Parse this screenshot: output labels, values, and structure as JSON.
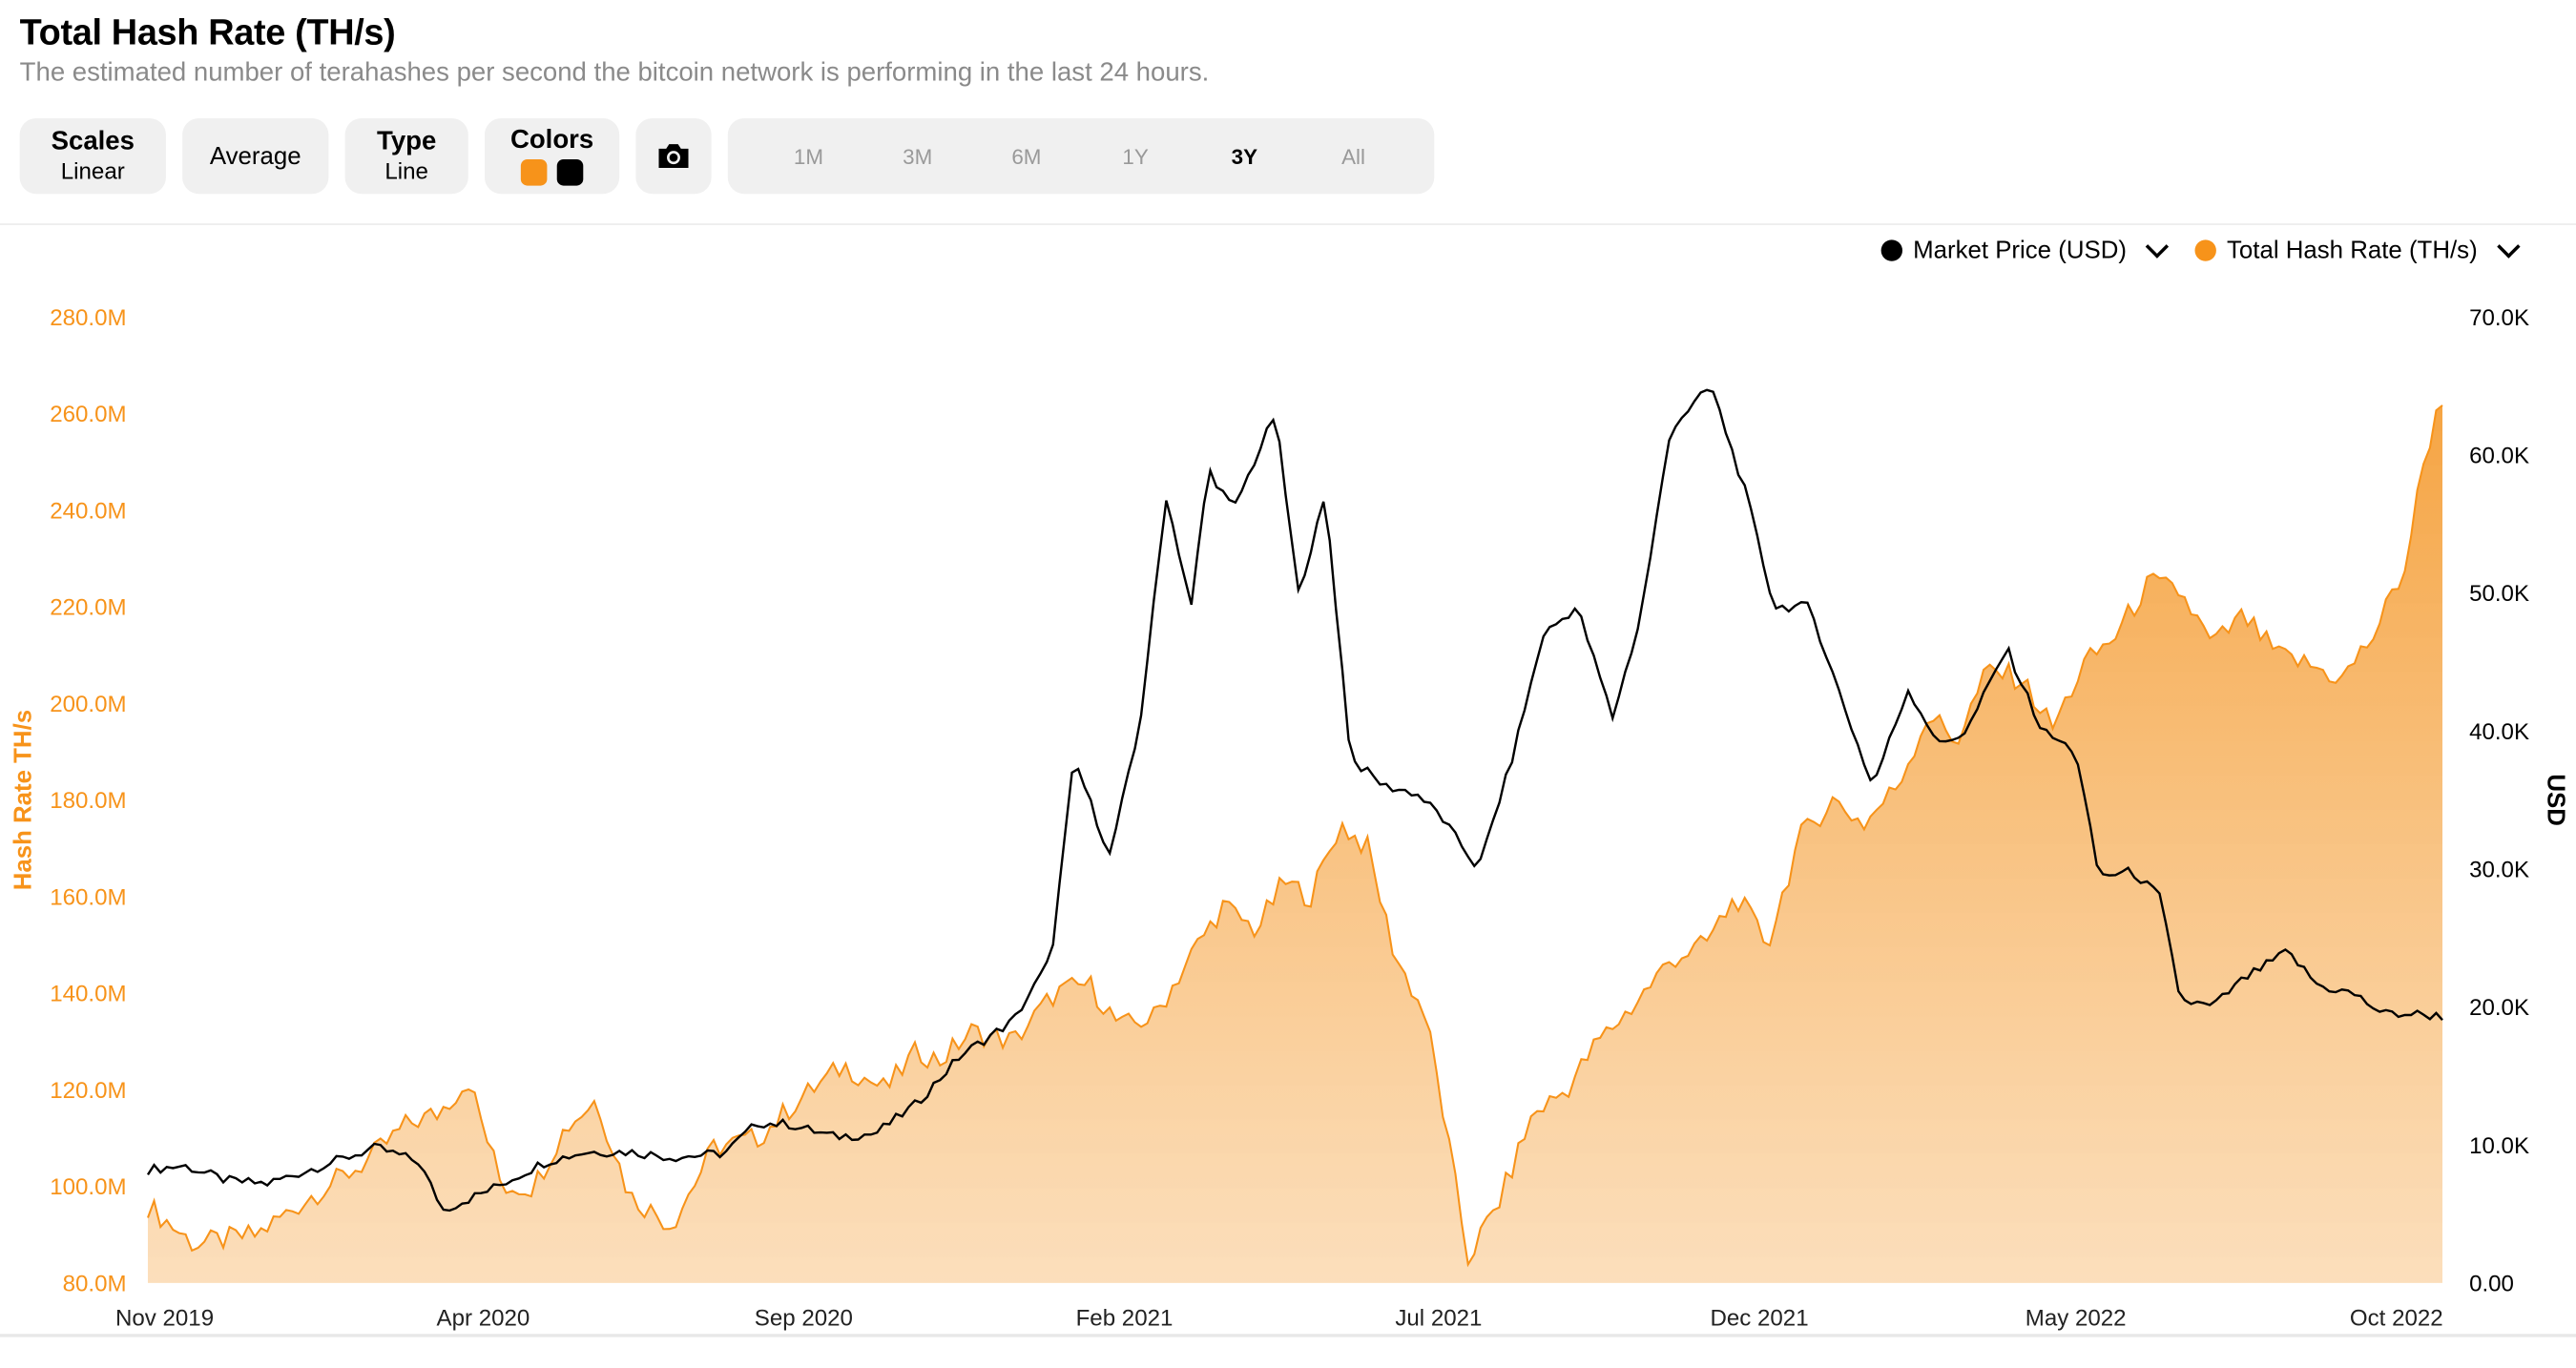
{
  "header": {
    "title": "Total Hash Rate (TH/s)",
    "subtitle": "The estimated number of terahashes per second the bitcoin network is performing in the last 24 hours."
  },
  "toolbar": {
    "scales_label": "Scales",
    "scales_value": "Linear",
    "average_label": "Average",
    "type_label": "Type",
    "type_value": "Line",
    "colors_label": "Colors",
    "colors": [
      "#f7931a",
      "#000000"
    ],
    "camera_icon": "camera-icon",
    "ranges": [
      "1M",
      "3M",
      "6M",
      "1Y",
      "3Y",
      "All"
    ],
    "active_range": "3Y"
  },
  "legend": {
    "items": [
      {
        "name": "Market Price (USD)",
        "color": "#000000"
      },
      {
        "name": "Total Hash Rate (TH/s)",
        "color": "#f7931a"
      }
    ]
  },
  "chart_data": {
    "type": "area",
    "title": "Total Hash Rate (TH/s)",
    "xlabel": "",
    "ylabel": "Hash Rate TH/s",
    "y2label": "USD",
    "x_tick_labels": [
      "Nov 2019",
      "Apr 2020",
      "Sep 2020",
      "Feb 2021",
      "Jul 2021",
      "Dec 2021",
      "May 2022",
      "Oct 2022"
    ],
    "y_tick_labels": [
      "80.0M",
      "100.0M",
      "120.0M",
      "140.0M",
      "160.0M",
      "180.0M",
      "200.0M",
      "220.0M",
      "240.0M",
      "260.0M",
      "280.0M"
    ],
    "y2_tick_labels": [
      "0.00",
      "10.0K",
      "20.0K",
      "30.0K",
      "40.0K",
      "50.0K",
      "60.0K",
      "70.0K"
    ],
    "ylim": [
      80,
      280
    ],
    "y2lim": [
      0,
      70000
    ],
    "xlim": [
      "2019-10-24",
      "2022-10-24"
    ],
    "legend_position": "top-right",
    "series": [
      {
        "name": "Total Hash Rate (TH/s)",
        "unit": "M TH/s",
        "axis": "left",
        "type": "area",
        "color": "#f7931a",
        "x": [
          "2019-10-24",
          "2019-11-15",
          "2019-12-15",
          "2020-01-10",
          "2020-02-05",
          "2020-02-25",
          "2020-03-10",
          "2020-03-25",
          "2020-04-10",
          "2020-04-25",
          "2020-05-10",
          "2020-05-25",
          "2020-06-10",
          "2020-06-30",
          "2020-07-20",
          "2020-08-10",
          "2020-08-30",
          "2020-09-20",
          "2020-10-10",
          "2020-10-25",
          "2020-11-05",
          "2020-11-20",
          "2020-12-10",
          "2020-12-30",
          "2021-01-15",
          "2021-01-30",
          "2021-02-15",
          "2021-03-05",
          "2021-03-20",
          "2021-04-05",
          "2021-04-18",
          "2021-05-01",
          "2021-05-15",
          "2021-05-28",
          "2021-06-10",
          "2021-06-25",
          "2021-07-02",
          "2021-07-15",
          "2021-07-30",
          "2021-08-15",
          "2021-08-31",
          "2021-09-15",
          "2021-10-01",
          "2021-10-20",
          "2021-11-05",
          "2021-11-20",
          "2021-12-05",
          "2021-12-20",
          "2022-01-05",
          "2022-01-20",
          "2022-02-05",
          "2022-02-20",
          "2022-03-05",
          "2022-03-20",
          "2022-04-05",
          "2022-04-20",
          "2022-05-05",
          "2022-05-20",
          "2022-06-05",
          "2022-06-20",
          "2022-07-05",
          "2022-07-20",
          "2022-08-05",
          "2022-08-20",
          "2022-09-05",
          "2022-09-20",
          "2022-10-05",
          "2022-10-15",
          "2022-10-24"
        ],
        "values": [
          96,
          88,
          90,
          98,
          105,
          113,
          115,
          122,
          100,
          100,
          112,
          118,
          98,
          92,
          108,
          110,
          118,
          125,
          120,
          128,
          126,
          132,
          130,
          140,
          142,
          133,
          135,
          148,
          158,
          153,
          163,
          160,
          175,
          170,
          148,
          135,
          118,
          85,
          97,
          115,
          120,
          130,
          137,
          147,
          150,
          160,
          150,
          172,
          180,
          175,
          183,
          198,
          192,
          207,
          205,
          195,
          208,
          214,
          225,
          223,
          212,
          218,
          210,
          208,
          205,
          214,
          228,
          252,
          265
        ]
      },
      {
        "name": "Market Price (USD)",
        "unit": "USD",
        "axis": "right",
        "type": "line",
        "color": "#000000",
        "x": [
          "2019-10-24",
          "2019-11-10",
          "2019-12-01",
          "2019-12-20",
          "2020-01-15",
          "2020-02-10",
          "2020-03-01",
          "2020-03-13",
          "2020-04-05",
          "2020-05-01",
          "2020-05-20",
          "2020-06-10",
          "2020-07-01",
          "2020-07-25",
          "2020-08-10",
          "2020-08-25",
          "2020-09-15",
          "2020-10-05",
          "2020-10-25",
          "2020-11-15",
          "2020-12-10",
          "2020-12-28",
          "2021-01-08",
          "2021-01-25",
          "2021-02-08",
          "2021-02-21",
          "2021-03-05",
          "2021-03-13",
          "2021-03-25",
          "2021-04-14",
          "2021-04-25",
          "2021-05-08",
          "2021-05-20",
          "2021-06-05",
          "2021-06-20",
          "2021-07-01",
          "2021-07-20",
          "2021-08-05",
          "2021-08-20",
          "2021-09-05",
          "2021-09-22",
          "2021-10-05",
          "2021-10-20",
          "2021-11-08",
          "2021-11-25",
          "2021-12-08",
          "2021-12-25",
          "2022-01-10",
          "2022-01-24",
          "2022-02-10",
          "2022-02-25",
          "2022-03-10",
          "2022-03-29",
          "2022-04-15",
          "2022-05-01",
          "2022-05-12",
          "2022-05-28",
          "2022-06-10",
          "2022-06-20",
          "2022-07-05",
          "2022-07-20",
          "2022-08-10",
          "2022-08-25",
          "2022-09-10",
          "2022-09-25",
          "2022-10-10",
          "2022-10-24"
        ],
        "values": [
          8200,
          8500,
          7400,
          7200,
          8500,
          9800,
          8800,
          5300,
          6800,
          8800,
          9500,
          9500,
          9100,
          9400,
          11600,
          11500,
          10600,
          10800,
          13000,
          16500,
          19000,
          23500,
          38000,
          31000,
          40000,
          57000,
          49000,
          59000,
          56000,
          63000,
          50000,
          57000,
          38000,
          36000,
          35500,
          34000,
          30000,
          38000,
          47000,
          49000,
          41000,
          48000,
          62000,
          65000,
          57000,
          49000,
          49000,
          42000,
          36000,
          43000,
          39000,
          40000,
          46000,
          40000,
          38500,
          29500,
          29800,
          28000,
          20500,
          20000,
          22000,
          24000,
          21500,
          21000,
          19500,
          19500,
          19300
        ]
      }
    ]
  }
}
